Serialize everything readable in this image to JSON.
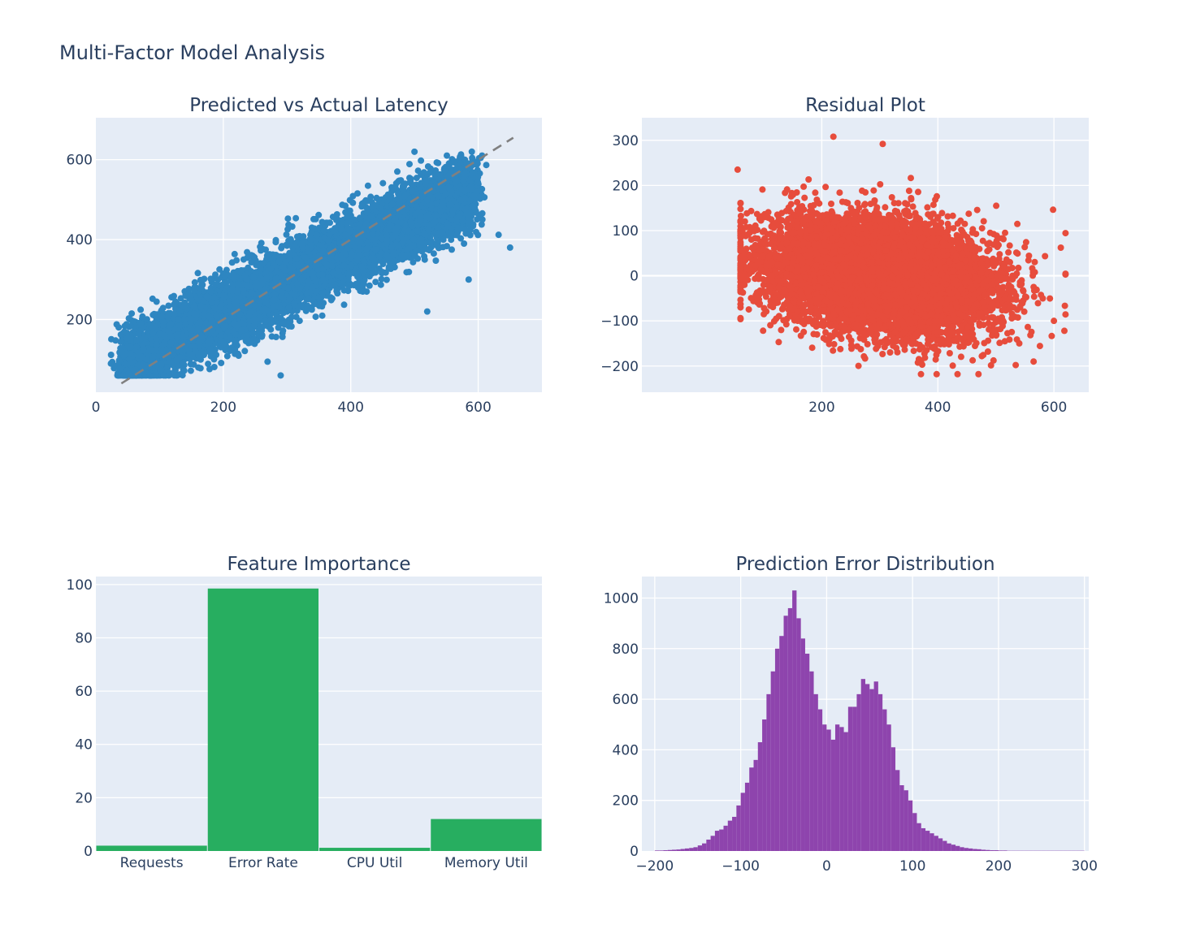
{
  "figure": {
    "title": "Multi-Factor Model Analysis",
    "colors": {
      "plot_bg": "#e5ecf6",
      "grid": "#ffffff",
      "text": "#2a3f5f",
      "scatter": "#2e86c1",
      "residual": "#e74c3c",
      "bar": "#27ae60",
      "histogram": "#8e44ad",
      "reference_line": "#808080"
    }
  },
  "chart_data": [
    {
      "id": "pred_vs_actual",
      "type": "scatter",
      "title": "Predicted vs Actual Latency",
      "xlabel": "",
      "ylabel": "",
      "xlim": [
        0,
        700
      ],
      "ylim": [
        18,
        705
      ],
      "xticks": [
        0,
        200,
        400,
        600
      ],
      "yticks": [
        200,
        400,
        600
      ],
      "grid": true,
      "reference_line": {
        "style": "dashed",
        "x": [
          40,
          655
        ],
        "y": [
          40,
          655
        ]
      },
      "cloud": {
        "x_range": [
          40,
          655
        ],
        "y_range": [
          60,
          620
        ],
        "approx_points": 20000,
        "trend_slope": 0.8,
        "trend_intercept": 55,
        "spread_sd": 42
      },
      "sample_points": [
        {
          "x": 40,
          "y": 120
        },
        {
          "x": 80,
          "y": 100
        },
        {
          "x": 130,
          "y": 200
        },
        {
          "x": 200,
          "y": 260
        },
        {
          "x": 290,
          "y": 60
        },
        {
          "x": 350,
          "y": 360
        },
        {
          "x": 420,
          "y": 420
        },
        {
          "x": 500,
          "y": 620
        },
        {
          "x": 520,
          "y": 220
        },
        {
          "x": 585,
          "y": 300
        },
        {
          "x": 632,
          "y": 412
        },
        {
          "x": 650,
          "y": 380
        }
      ]
    },
    {
      "id": "residual_plot",
      "type": "scatter",
      "title": "Residual Plot",
      "xlabel": "",
      "ylabel": "",
      "xlim": [
        -110,
        660
      ],
      "ylim": [
        -258,
        350
      ],
      "xticks": [
        200,
        400,
        600
      ],
      "yticks": [
        -200,
        -100,
        0,
        100,
        200,
        300
      ],
      "grid": true,
      "cloud": {
        "x_range": [
          60,
          620
        ],
        "y_range": [
          -218,
          308
        ],
        "approx_points": 20000,
        "center_x": 300,
        "trend_slope": -0.15,
        "spread_sd": 60
      },
      "sample_points": [
        {
          "x": 55,
          "y": 235
        },
        {
          "x": 220,
          "y": 308
        },
        {
          "x": 305,
          "y": 292
        },
        {
          "x": 470,
          "y": -218
        },
        {
          "x": 565,
          "y": -190
        },
        {
          "x": 600,
          "y": -100
        },
        {
          "x": 618,
          "y": -122
        },
        {
          "x": 60,
          "y": 20
        }
      ]
    },
    {
      "id": "feature_importance",
      "type": "bar",
      "title": "Feature Importance",
      "xlabel": "",
      "ylabel": "",
      "categories": [
        "Requests",
        "Error Rate",
        "CPU Util",
        "Memory Util"
      ],
      "values": [
        2,
        98.5,
        1.2,
        12
      ],
      "ylim": [
        0,
        103
      ],
      "yticks": [
        0,
        20,
        40,
        60,
        80,
        100
      ],
      "grid": true
    },
    {
      "id": "error_distribution",
      "type": "bar",
      "subtype": "histogram",
      "title": "Prediction Error Distribution",
      "xlabel": "",
      "ylabel": "",
      "xlim": [
        -215,
        305
      ],
      "ylim": [
        0,
        1085
      ],
      "xticks": [
        -200,
        -100,
        0,
        100,
        200,
        300
      ],
      "yticks": [
        0,
        200,
        400,
        600,
        800,
        1000
      ],
      "bin_start": -200,
      "bin_width": 5,
      "counts": [
        2,
        2,
        3,
        4,
        5,
        6,
        8,
        10,
        12,
        15,
        22,
        30,
        45,
        60,
        80,
        85,
        100,
        120,
        135,
        180,
        230,
        270,
        330,
        360,
        430,
        520,
        620,
        710,
        800,
        850,
        930,
        960,
        1030,
        920,
        840,
        780,
        710,
        620,
        560,
        500,
        480,
        440,
        500,
        490,
        470,
        570,
        570,
        620,
        680,
        660,
        640,
        670,
        620,
        560,
        500,
        410,
        320,
        260,
        240,
        200,
        150,
        110,
        90,
        80,
        70,
        60,
        50,
        40,
        30,
        25,
        20,
        15,
        12,
        10,
        8,
        7,
        5,
        4,
        3,
        3,
        2,
        2,
        1,
        1,
        1,
        1,
        1,
        1,
        1,
        1,
        1,
        1,
        1,
        1,
        1,
        1,
        1,
        1,
        1,
        1
      ],
      "grid": true
    }
  ]
}
